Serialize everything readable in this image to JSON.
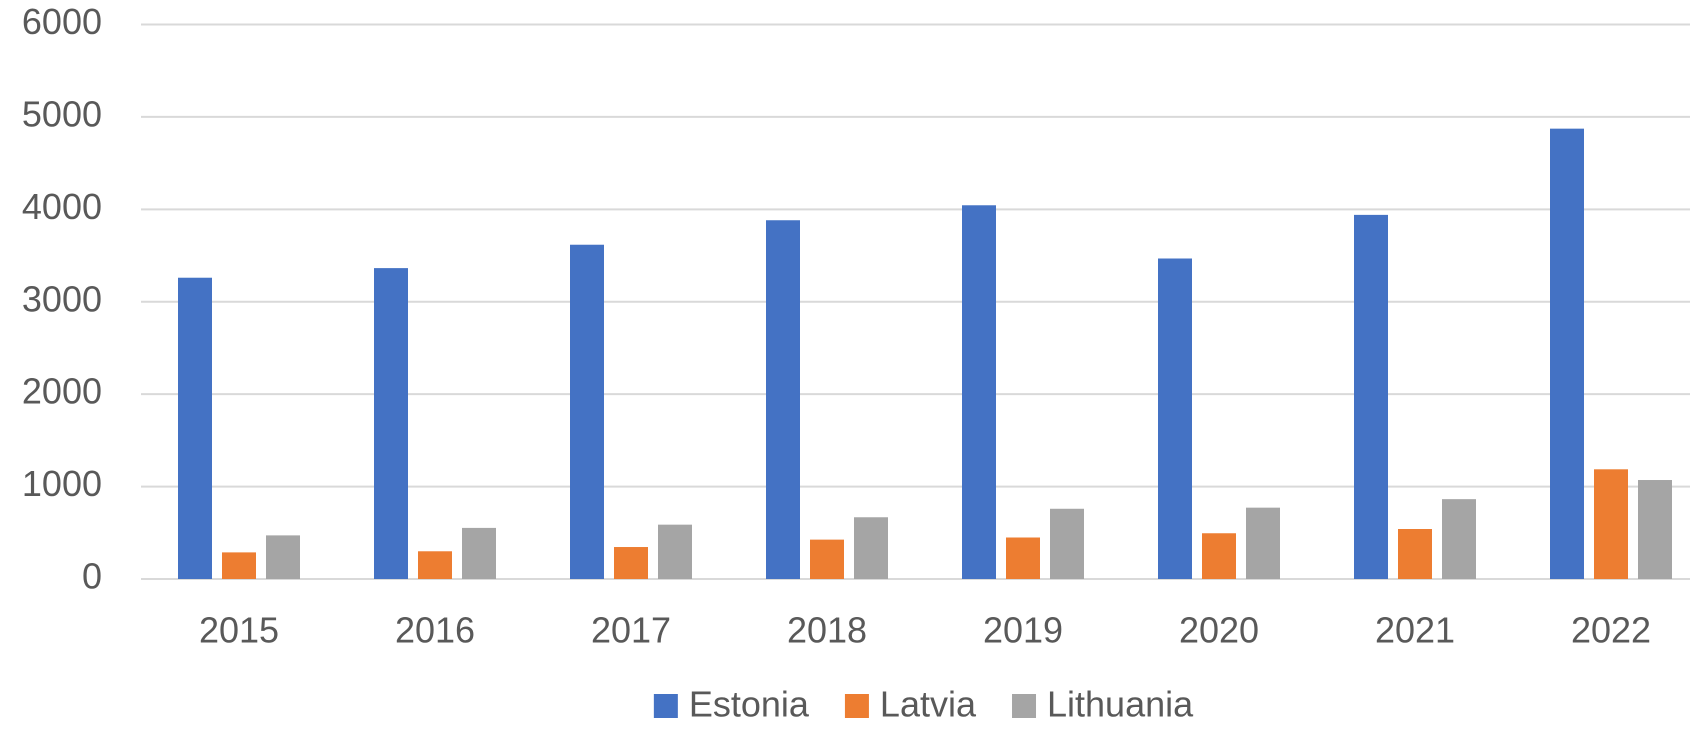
{
  "chart_data": {
    "type": "bar",
    "categories": [
      "2015",
      "2016",
      "2017",
      "2018",
      "2019",
      "2020",
      "2021",
      "2022"
    ],
    "series": [
      {
        "name": "Estonia",
        "color": "#4472c4",
        "values": [
          3260,
          3364,
          3617,
          3882,
          4044,
          3468,
          3940,
          4873
        ]
      },
      {
        "name": "Latvia",
        "color": "#ed7d31",
        "values": [
          288,
          300,
          346,
          426,
          449,
          495,
          541,
          1187
        ]
      },
      {
        "name": "Lithuania",
        "color": "#a5a5a5",
        "values": [
          472,
          553,
          588,
          668,
          760,
          772,
          864,
          1071
        ]
      }
    ],
    "ylim": [
      0,
      6000
    ],
    "yticks": [
      0,
      1000,
      2000,
      3000,
      4000,
      5000,
      6000
    ],
    "grid": true,
    "legend": "bottom"
  }
}
